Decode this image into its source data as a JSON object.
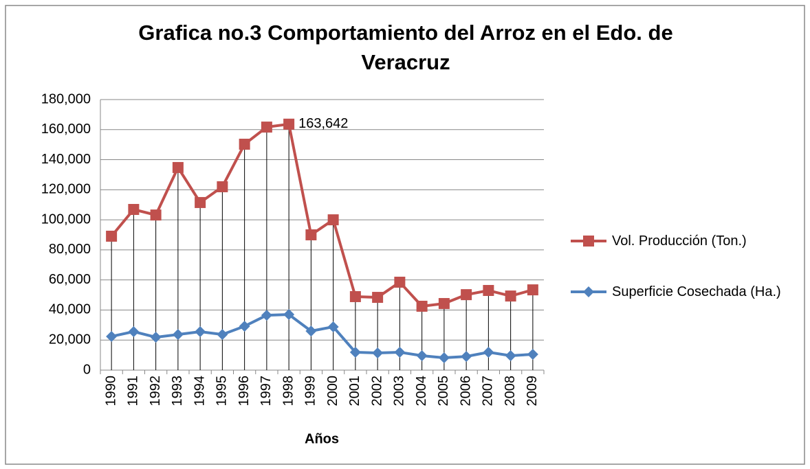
{
  "chart_data": {
    "type": "line",
    "title": "Grafica no.3 Comportamiento del Arroz en el Edo. de Veracruz",
    "x_label": "Años",
    "categories": [
      "1990",
      "1991",
      "1992",
      "1993",
      "1994",
      "1995",
      "1996",
      "1997",
      "1998",
      "1999",
      "2000",
      "2001",
      "2002",
      "2003",
      "2004",
      "2005",
      "2006",
      "2007",
      "2008",
      "2009"
    ],
    "series": [
      {
        "name": "Vol. Producción (Ton.)",
        "color": "#c0504d",
        "marker": "square",
        "values": [
          89100,
          106900,
          103200,
          134800,
          111500,
          122000,
          150300,
          161700,
          163642,
          90000,
          100000,
          48900,
          48400,
          58500,
          42500,
          44300,
          50200,
          53000,
          49300,
          53400
        ],
        "value_labels": [
          null,
          null,
          null,
          null,
          null,
          null,
          null,
          null,
          "163,642",
          null,
          null,
          null,
          null,
          null,
          null,
          null,
          null,
          null,
          null,
          null
        ]
      },
      {
        "name": "Superficie Cosechada (Ha.)",
        "color": "#4f81bd",
        "marker": "diamond",
        "values": [
          22400,
          25600,
          21900,
          23700,
          25600,
          23700,
          29200,
          36500,
          37000,
          26000,
          28800,
          11900,
          11400,
          11900,
          9600,
          8200,
          9100,
          11900,
          9600,
          10500
        ]
      }
    ],
    "drop_lines": true,
    "ylim": [
      0,
      180000
    ],
    "yticks": [
      0,
      {
        "value": 20000,
        "label": "20,000"
      },
      {
        "value": 40000,
        "label": "40,000"
      },
      {
        "value": 60000,
        "label": "60,000"
      },
      {
        "value": 80000,
        "label": "80,000"
      },
      {
        "value": 100000,
        "label": "100,000"
      },
      {
        "value": 120000,
        "label": "120,000"
      },
      {
        "value": 140000,
        "label": "140,000"
      },
      {
        "value": 160000,
        "label": "160,000"
      },
      {
        "value": 180000,
        "label": "180,000"
      }
    ],
    "grid": true,
    "legend": "right"
  }
}
